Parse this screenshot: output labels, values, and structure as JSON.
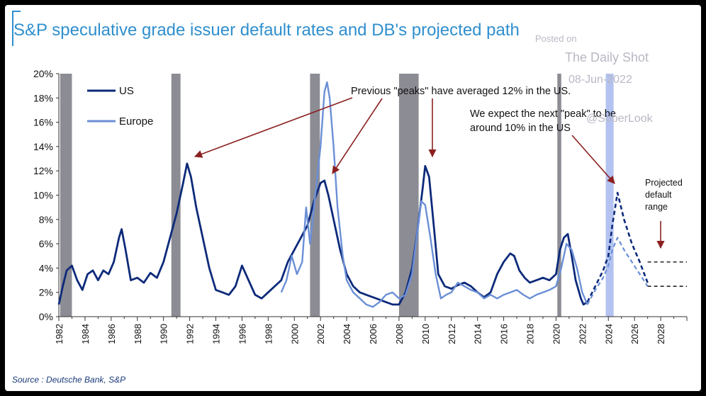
{
  "header": {
    "title": "S&P speculative grade issuer default rates and DB's projected path",
    "source": "Source : Deutsche Bank, S&P"
  },
  "watermark": {
    "line1": "Posted on",
    "line2": "The Daily Shot",
    "line3": "08-Jun-2022",
    "line4": "@SoberLook"
  },
  "chart_data": {
    "type": "line",
    "title": "S&P speculative grade issuer default rates and DB's projected path",
    "xlim": [
      1982,
      2030
    ],
    "ylim": [
      0,
      20
    ],
    "x_ticks": [
      "1982",
      "1984",
      "1986",
      "1988",
      "1990",
      "1992",
      "1994",
      "1996",
      "1998",
      "2000",
      "2002",
      "2004",
      "2006",
      "2008",
      "2010",
      "2012",
      "2014",
      "2016",
      "2018",
      "2020",
      "2022",
      "2024",
      "2026",
      "2028"
    ],
    "y_ticks": [
      "0%",
      "2%",
      "4%",
      "6%",
      "8%",
      "10%",
      "12%",
      "14%",
      "16%",
      "18%",
      "20%"
    ],
    "colors": {
      "us": "#0d2a7a",
      "europe": "#6b8fd6",
      "recession": "#8c8c94",
      "projection_bar": "#b3c2f0",
      "annotation": "#8b2020"
    },
    "shaded_periods": [
      {
        "start": 1982.1,
        "end": 1983.0,
        "kind": "recession"
      },
      {
        "start": 1990.6,
        "end": 1991.3,
        "kind": "recession"
      },
      {
        "start": 2001.2,
        "end": 2001.95,
        "kind": "recession"
      },
      {
        "start": 2008.0,
        "end": 2009.5,
        "kind": "recession"
      },
      {
        "start": 2020.1,
        "end": 2020.4,
        "kind": "recession"
      },
      {
        "start": 2023.8,
        "end": 2024.4,
        "kind": "projection"
      }
    ],
    "series": [
      {
        "name": "US",
        "x": [
          1982.0,
          1982.3,
          1982.6,
          1983.0,
          1983.4,
          1983.8,
          1984.2,
          1984.6,
          1985.0,
          1985.4,
          1985.8,
          1986.2,
          1986.6,
          1986.8,
          1987.1,
          1987.5,
          1988.0,
          1988.5,
          1989.0,
          1989.5,
          1990.0,
          1990.5,
          1991.0,
          1991.5,
          1991.8,
          1992.1,
          1992.5,
          1993.0,
          1993.5,
          1994.0,
          1994.5,
          1995.0,
          1995.5,
          1996.0,
          1996.5,
          1997.0,
          1997.5,
          1998.0,
          1998.5,
          1999.0,
          1999.5,
          2000.0,
          2000.5,
          2001.0,
          2001.5,
          2002.0,
          2002.3,
          2002.6,
          2003.0,
          2003.5,
          2004.0,
          2004.5,
          2005.0,
          2005.5,
          2006.0,
          2006.5,
          2007.0,
          2007.5,
          2008.0,
          2008.5,
          2009.0,
          2009.4,
          2009.8,
          2010.0,
          2010.3,
          2010.7,
          2011.0,
          2011.5,
          2012.0,
          2012.5,
          2013.0,
          2013.5,
          2014.0,
          2014.5,
          2015.0,
          2015.5,
          2016.0,
          2016.5,
          2016.8,
          2017.2,
          2017.6,
          2018.0,
          2018.5,
          2019.0,
          2019.5,
          2020.0,
          2020.3,
          2020.6,
          2020.9,
          2021.2,
          2021.5,
          2021.9,
          2022.1,
          2022.4
        ],
        "values": [
          1.0,
          2.5,
          3.8,
          4.2,
          3.0,
          2.2,
          3.5,
          3.8,
          3.0,
          3.8,
          3.5,
          4.5,
          6.5,
          7.2,
          5.5,
          3.0,
          3.2,
          2.8,
          3.6,
          3.2,
          4.5,
          6.5,
          8.5,
          11.0,
          12.6,
          11.5,
          9.0,
          6.5,
          4.0,
          2.2,
          2.0,
          1.8,
          2.5,
          4.2,
          3.0,
          1.8,
          1.5,
          2.0,
          2.5,
          3.0,
          4.5,
          5.5,
          6.5,
          7.5,
          9.5,
          11.0,
          11.2,
          10.0,
          8.0,
          5.5,
          3.5,
          2.5,
          2.0,
          1.8,
          1.6,
          1.4,
          1.2,
          1.0,
          1.0,
          2.0,
          4.0,
          7.0,
          10.5,
          12.4,
          11.5,
          7.0,
          3.5,
          2.5,
          2.3,
          2.6,
          2.8,
          2.5,
          2.0,
          1.6,
          2.0,
          3.5,
          4.5,
          5.2,
          5.0,
          3.8,
          3.2,
          2.8,
          3.0,
          3.2,
          3.0,
          3.5,
          5.5,
          6.5,
          6.8,
          5.0,
          3.0,
          1.5,
          1.0,
          1.2
        ]
      },
      {
        "name": "Europe",
        "x": [
          1999.0,
          1999.4,
          1999.8,
          2000.2,
          2000.6,
          2000.9,
          2001.2,
          2001.6,
          2002.0,
          2002.3,
          2002.5,
          2002.7,
          2003.0,
          2003.3,
          2003.7,
          2004.0,
          2004.5,
          2005.0,
          2005.5,
          2006.0,
          2006.5,
          2007.0,
          2007.5,
          2008.0,
          2008.5,
          2009.0,
          2009.4,
          2009.7,
          2010.0,
          2010.4,
          2010.8,
          2011.2,
          2011.6,
          2012.0,
          2012.5,
          2013.0,
          2013.5,
          2014.0,
          2014.5,
          2015.0,
          2015.5,
          2016.0,
          2016.5,
          2017.0,
          2017.5,
          2018.0,
          2018.5,
          2019.0,
          2019.5,
          2020.0,
          2020.4,
          2020.8,
          2021.2,
          2021.6,
          2022.0,
          2022.4
        ],
        "values": [
          2.0,
          3.0,
          5.0,
          3.5,
          4.5,
          9.0,
          6.0,
          10.0,
          14.0,
          18.5,
          19.3,
          18.0,
          14.0,
          9.0,
          5.0,
          3.0,
          2.0,
          1.5,
          1.0,
          0.8,
          1.2,
          1.8,
          2.0,
          1.5,
          1.8,
          3.5,
          7.0,
          9.5,
          9.2,
          6.5,
          3.5,
          1.5,
          1.8,
          2.0,
          2.8,
          2.5,
          2.2,
          2.0,
          1.5,
          1.8,
          1.5,
          1.8,
          2.0,
          2.2,
          1.8,
          1.5,
          1.8,
          2.0,
          2.2,
          2.5,
          4.0,
          6.0,
          5.5,
          4.0,
          2.0,
          1.0
        ]
      },
      {
        "name": "US projected",
        "x": [
          2022.4,
          2023.0,
          2023.6,
          2024.0,
          2024.3,
          2024.7,
          2025.2,
          2025.8,
          2026.4,
          2027.0
        ],
        "values": [
          1.2,
          2.5,
          3.8,
          5.0,
          7.5,
          10.2,
          8.0,
          6.0,
          4.5,
          2.8
        ],
        "style": "dashed"
      },
      {
        "name": "Europe projected",
        "x": [
          2022.4,
          2023.0,
          2023.6,
          2024.0,
          2024.3,
          2024.7,
          2025.2,
          2025.8,
          2026.4,
          2027.0
        ],
        "values": [
          1.0,
          2.2,
          3.2,
          4.2,
          5.5,
          6.5,
          5.5,
          4.5,
          3.5,
          2.5
        ],
        "style": "dashed"
      }
    ],
    "projected_range": {
      "upper": 4.5,
      "lower": 2.5,
      "x_start": 2027.0,
      "x_end": 2030.0
    },
    "legend": {
      "placement": "top-left",
      "entries": [
        "US",
        "Europe"
      ]
    },
    "annotations": {
      "peaks": "Previous \"peaks\" have averaged 12% in the US.",
      "next_line1": "We expect the next \"peak\" to be",
      "next_line2": "around 10% in the US",
      "range_line1": "Projected",
      "range_line2": "default",
      "range_line3": "range"
    },
    "grid": false
  }
}
